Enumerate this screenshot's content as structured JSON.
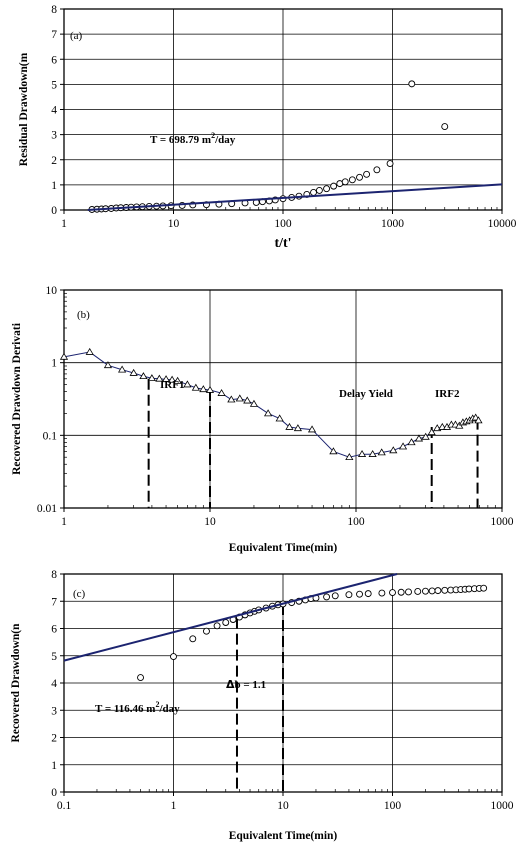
{
  "chart_data": [
    {
      "panel": "(a)",
      "type": "scatter",
      "xscale": "log",
      "xlim": [
        1,
        10000
      ],
      "ylim": [
        0,
        8
      ],
      "xlabel": "t/t'",
      "ylabel": "Residual Drawdown(m",
      "xticks": [
        "1",
        "10",
        "100",
        "1000",
        "10000"
      ],
      "yticks": [
        "0",
        "1",
        "2",
        "3",
        "4",
        "5",
        "6",
        "7",
        "8"
      ],
      "grid": true,
      "annotations": [
        {
          "text": "T = 698.79 m",
          "sup": "2",
          "after": "/day"
        }
      ],
      "series": [
        {
          "marker": "circle",
          "x": [
            1.8,
            2.0,
            2.2,
            2.4,
            2.7,
            3.0,
            3.3,
            3.7,
            4.1,
            4.6,
            5.2,
            6.0,
            7.0,
            8.0,
            9.5,
            12,
            15,
            20,
            26,
            34,
            45,
            57,
            65,
            75,
            85,
            100,
            120,
            140,
            165,
            190,
            215,
            250,
            290,
            330,
            370,
            430,
            500,
            580,
            720,
            950,
            1500,
            3000
          ],
          "y": [
            0.02,
            0.03,
            0.04,
            0.05,
            0.06,
            0.08,
            0.09,
            0.1,
            0.11,
            0.12,
            0.13,
            0.14,
            0.15,
            0.16,
            0.17,
            0.18,
            0.2,
            0.21,
            0.23,
            0.25,
            0.28,
            0.3,
            0.33,
            0.36,
            0.4,
            0.45,
            0.5,
            0.55,
            0.62,
            0.7,
            0.78,
            0.85,
            0.95,
            1.05,
            1.12,
            1.2,
            1.3,
            1.42,
            1.6,
            1.85,
            5.02,
            3.32
          ]
        },
        {
          "marker": "none",
          "line": "fit",
          "x": [
            1.65,
            10000
          ],
          "y": [
            0.0,
            1.02
          ]
        }
      ]
    },
    {
      "panel": "(b)",
      "type": "line",
      "xscale": "log",
      "yscale": "log",
      "xlim": [
        1,
        1000
      ],
      "ylim": [
        0.01,
        10
      ],
      "xlabel": "Equivalent Time(min)",
      "ylabel": "Recovered Drawdown Derivati",
      "xticks": [
        "1",
        "10",
        "100",
        "1000"
      ],
      "yticks": [
        "0.01",
        "0.1",
        "1",
        "10"
      ],
      "grid": true,
      "annotations": [
        {
          "text": "IRF1"
        },
        {
          "text": "Delay Yield"
        },
        {
          "text": "IRF2"
        }
      ],
      "boundaries": [
        {
          "x": 3.8,
          "y_top": 0.6
        },
        {
          "x": 10,
          "y_top": 0.42
        },
        {
          "x": 330,
          "y_top": 0.13
        },
        {
          "x": 680,
          "y_top": 0.17
        }
      ],
      "series": [
        {
          "marker": "triangle",
          "x": [
            1.0,
            1.5,
            2.0,
            2.5,
            3.0,
            3.5,
            4.0,
            4.5,
            5.0,
            5.5,
            6.0,
            7.0,
            8.0,
            9.0,
            10,
            12,
            14,
            16,
            18,
            20,
            25,
            30,
            35,
            40,
            50,
            70,
            90,
            110,
            130,
            150,
            180,
            210,
            240,
            270,
            300,
            330,
            360,
            390,
            420,
            450,
            480,
            510,
            540,
            570,
            600,
            630,
            660,
            690
          ],
          "y": [
            1.2,
            1.4,
            0.92,
            0.8,
            0.72,
            0.65,
            0.61,
            0.6,
            0.59,
            0.58,
            0.56,
            0.5,
            0.45,
            0.43,
            0.42,
            0.38,
            0.31,
            0.32,
            0.3,
            0.27,
            0.2,
            0.17,
            0.13,
            0.125,
            0.12,
            0.06,
            0.05,
            0.055,
            0.055,
            0.058,
            0.062,
            0.07,
            0.08,
            0.09,
            0.095,
            0.11,
            0.125,
            0.13,
            0.13,
            0.14,
            0.14,
            0.135,
            0.15,
            0.155,
            0.16,
            0.17,
            0.175,
            0.16
          ]
        }
      ]
    },
    {
      "panel": "(c)",
      "type": "scatter",
      "xscale": "log",
      "xlim": [
        0.1,
        1000
      ],
      "ylim": [
        0,
        8
      ],
      "xlabel": "Equivalent Time(min)",
      "ylabel": "Recovered Drawdown(n",
      "xticks": [
        "0.1",
        "1",
        "10",
        "100",
        "1000"
      ],
      "yticks": [
        "0",
        "1",
        "2",
        "3",
        "4",
        "5",
        "6",
        "7",
        "8"
      ],
      "grid": true,
      "annotations": [
        {
          "text": "T = 116.46 m",
          "sup": "2",
          "after": "/day"
        },
        {
          "symbol": "Δ",
          "text": "b = 1.1"
        }
      ],
      "boundaries": [
        {
          "x": 3.8,
          "y_top": 6.4
        },
        {
          "x": 10,
          "y_top": 6.9
        }
      ],
      "series": [
        {
          "marker": "circle",
          "x": [
            0.5,
            1.0,
            1.5,
            2.0,
            2.5,
            3.0,
            3.5,
            4.0,
            4.5,
            5.0,
            5.5,
            6.0,
            7.0,
            8.0,
            9.0,
            10,
            12,
            14,
            16,
            18,
            20,
            25,
            30,
            40,
            50,
            60,
            80,
            100,
            120,
            140,
            170,
            200,
            230,
            260,
            300,
            340,
            380,
            420,
            460,
            500,
            560,
            620,
            680
          ],
          "y": [
            4.2,
            4.97,
            5.62,
            5.9,
            6.1,
            6.22,
            6.33,
            6.42,
            6.5,
            6.57,
            6.63,
            6.68,
            6.75,
            6.82,
            6.87,
            6.9,
            6.95,
            7.0,
            7.05,
            7.1,
            7.12,
            7.16,
            7.2,
            7.24,
            7.26,
            7.28,
            7.3,
            7.32,
            7.33,
            7.34,
            7.36,
            7.37,
            7.38,
            7.39,
            7.4,
            7.41,
            7.42,
            7.43,
            7.44,
            7.45,
            7.46,
            7.47,
            7.48
          ]
        },
        {
          "marker": "none",
          "line": "fit",
          "x": [
            0.1,
            110
          ],
          "y": [
            4.82,
            8.0
          ]
        }
      ]
    }
  ]
}
